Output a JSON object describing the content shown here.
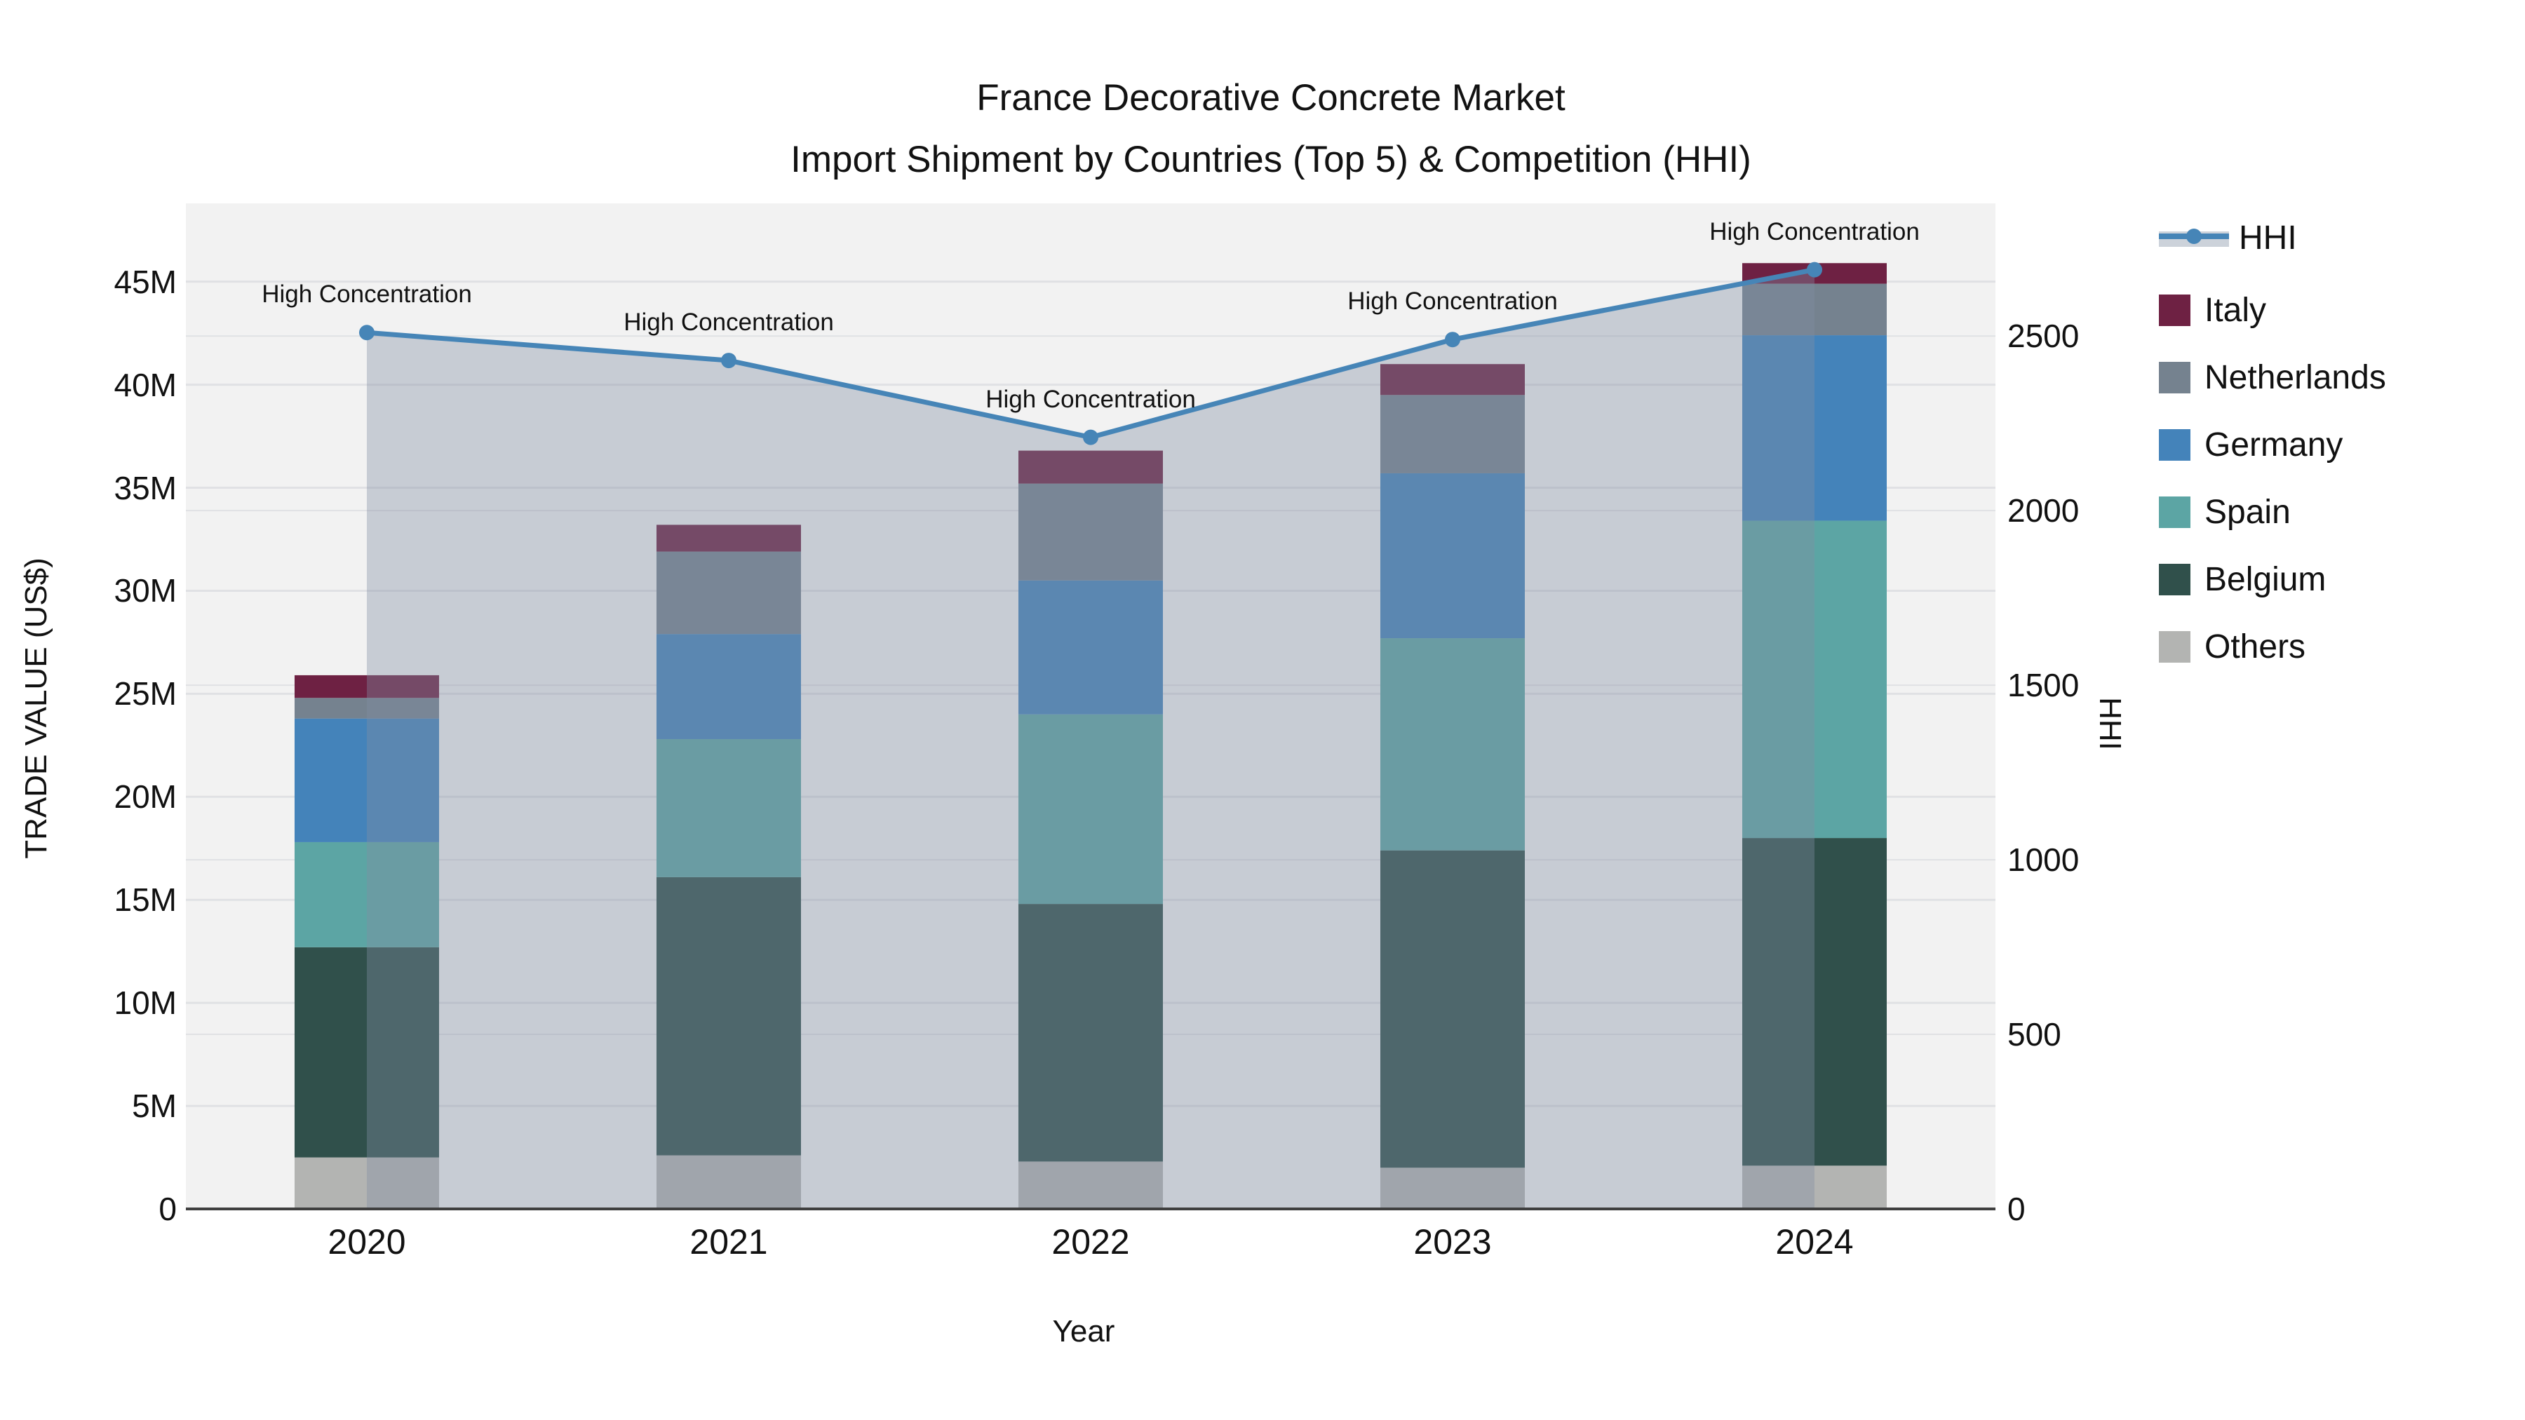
{
  "title": {
    "line1": "France Decorative Concrete Market",
    "line2": "Import Shipment by Countries (Top 5) & Competition (HHI)"
  },
  "chart_data": {
    "type": "bar+line",
    "title": "France Decorative Concrete Market Import Shipment by Countries (Top 5) & Competition (HHI)",
    "categories": [
      "2020",
      "2021",
      "2022",
      "2023",
      "2024"
    ],
    "series": [
      {
        "name": "Others",
        "color": "#b3b4b2",
        "values": [
          2.5,
          2.6,
          2.3,
          2.0,
          2.1
        ]
      },
      {
        "name": "Belgium",
        "color": "#30504b",
        "values": [
          10.2,
          13.5,
          12.5,
          15.4,
          15.9
        ]
      },
      {
        "name": "Spain",
        "color": "#5ca5a4",
        "values": [
          5.1,
          6.7,
          9.2,
          10.3,
          15.4
        ]
      },
      {
        "name": "Germany",
        "color": "#4483ba",
        "values": [
          6.0,
          5.1,
          6.5,
          8.0,
          9.0
        ]
      },
      {
        "name": "Netherlands",
        "color": "#75828f",
        "values": [
          1.0,
          4.0,
          4.7,
          3.8,
          2.5
        ]
      },
      {
        "name": "Italy",
        "color": "#6e2143",
        "values": [
          1.1,
          1.3,
          1.6,
          1.5,
          1.0
        ]
      }
    ],
    "bar_totals_musd": [
      25.9,
      33.2,
      36.8,
      41.0,
      45.9
    ],
    "line_series": {
      "name": "HHI",
      "color": "#4685b7",
      "area_color": "rgba(128,141,162,0.38)",
      "values": [
        2510,
        2430,
        2210,
        2490,
        2690
      ]
    },
    "annotations": [
      "High Concentration",
      "High Concentration",
      "High Concentration",
      "High Concentration",
      "High Concentration"
    ],
    "xlabel": "Year",
    "ylabel_left": "TRADE VALUE (US$)",
    "ylabel_right": "HHI",
    "yticks_left": {
      "values": [
        0,
        5,
        10,
        15,
        20,
        25,
        30,
        35,
        40,
        45
      ],
      "labels": [
        "0",
        "5M",
        "10M",
        "15M",
        "20M",
        "25M",
        "30M",
        "35M",
        "40M",
        "45M"
      ]
    },
    "yticks_right": {
      "values": [
        0,
        500,
        1000,
        1500,
        2000,
        2500
      ],
      "labels": [
        "0",
        "500",
        "1000",
        "1500",
        "2000",
        "2500"
      ]
    },
    "ylim_left": [
      0,
      48.8
    ],
    "ylim_right": [
      0,
      2880
    ],
    "grid": true,
    "legend_position": "right",
    "plot_bg": "#f2f2f2",
    "grid_color": "#e0e1e4",
    "spine_color": "#3f3f3f"
  },
  "legend": {
    "items": [
      {
        "label": "HHI",
        "type": "line",
        "color": "#4685b7"
      },
      {
        "label": "Italy",
        "type": "swatch",
        "color": "#6e2143"
      },
      {
        "label": "Netherlands",
        "type": "swatch",
        "color": "#75828f"
      },
      {
        "label": "Germany",
        "type": "swatch",
        "color": "#4483ba"
      },
      {
        "label": "Spain",
        "type": "swatch",
        "color": "#5ca5a4"
      },
      {
        "label": "Belgium",
        "type": "swatch",
        "color": "#30504b"
      },
      {
        "label": "Others",
        "type": "swatch",
        "color": "#b3b4b2"
      }
    ]
  }
}
